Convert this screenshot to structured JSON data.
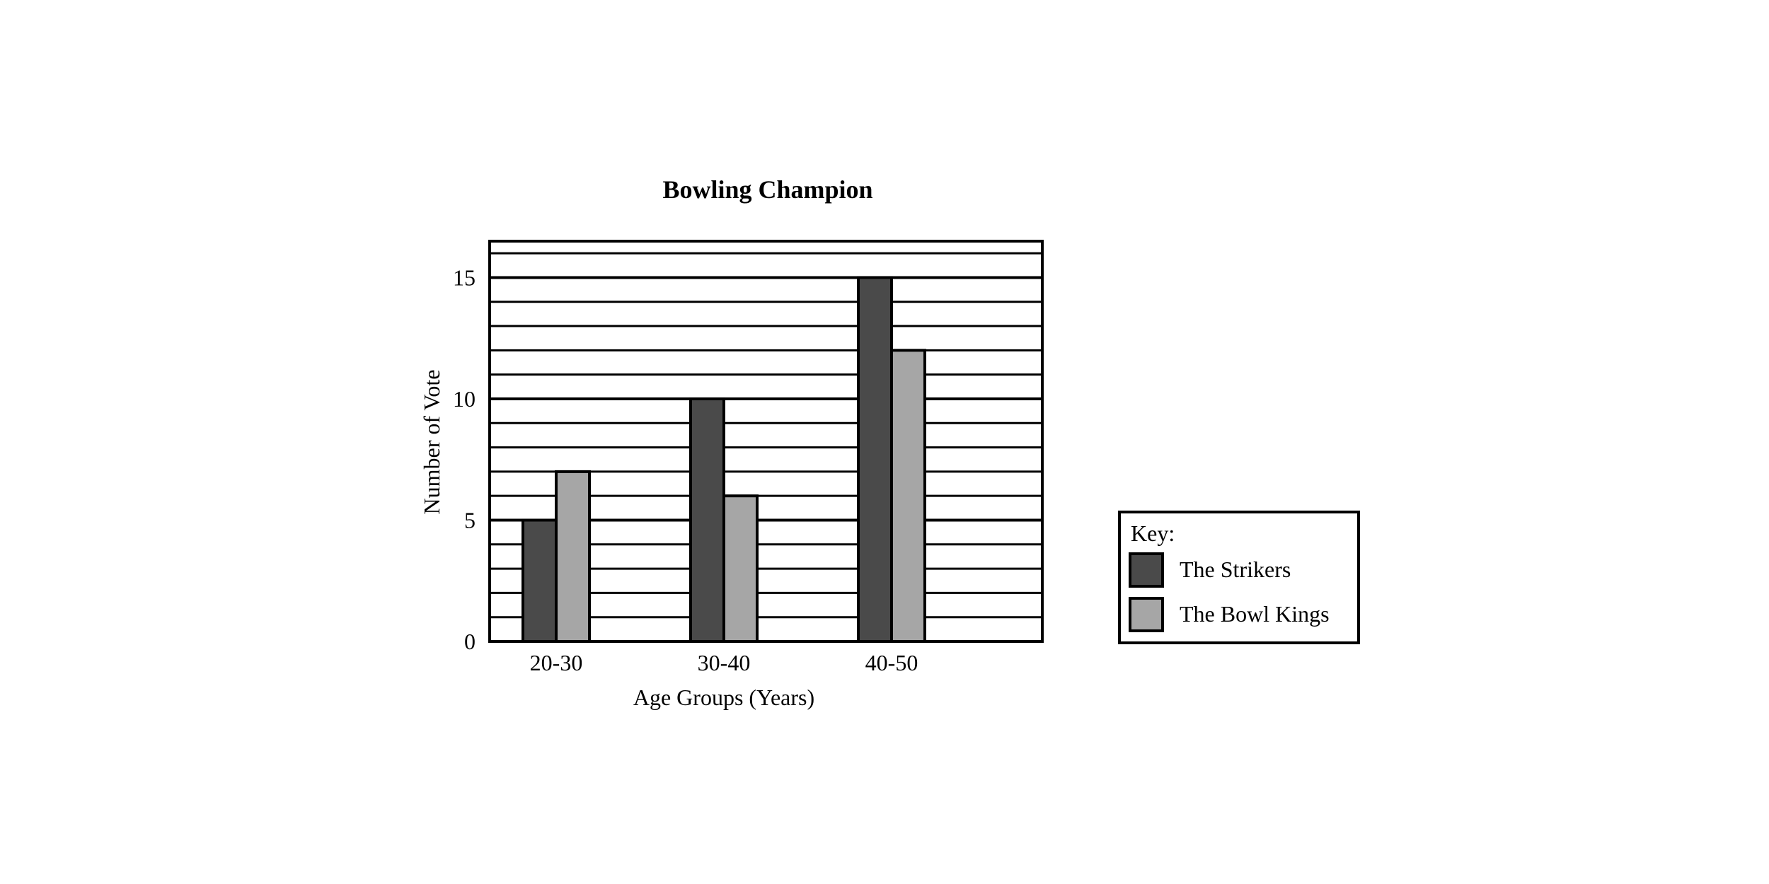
{
  "chart_data": {
    "type": "bar",
    "title": "Bowling Champion",
    "xlabel": "Age Groups (Years)",
    "ylabel": "Number of Vote",
    "categories": [
      "20-30",
      "30-40",
      "40-50"
    ],
    "series": [
      {
        "name": "The Strikers",
        "values": [
          5,
          10,
          15
        ],
        "color": "#4a4a4a"
      },
      {
        "name": "The Bowl Kings",
        "values": [
          7,
          6,
          12
        ],
        "color": "#a6a6a6"
      }
    ],
    "ylim": [
      0,
      16.5
    ],
    "yticks": [
      "0",
      "5",
      "10",
      "15"
    ],
    "grid": "horizontal lines every 1 unit",
    "legend": {
      "title": "Key:",
      "placement": "right"
    }
  }
}
